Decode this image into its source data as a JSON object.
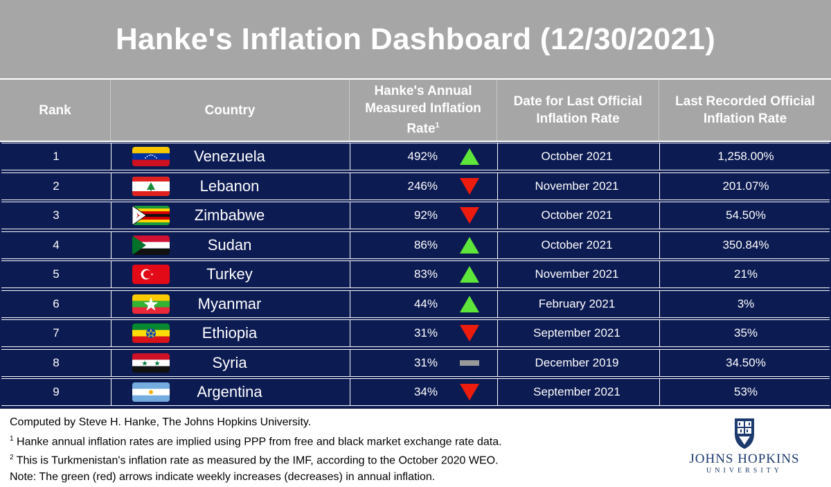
{
  "title": "Hanke's Inflation Dashboard (12/30/2021)",
  "columns": {
    "rank": "Rank",
    "country": "Country",
    "hanke_line1": "Hanke's Annual",
    "hanke_line2": "Measured Inflation",
    "hanke_line3": "Rate",
    "hanke_sup": "1",
    "date_line1": "Date for Last Official",
    "date_line2": "Inflation Rate",
    "last_line1": "Last Recorded Official",
    "last_line2": "Inflation Rate"
  },
  "chart_data": {
    "type": "table",
    "title": "Hanke's Inflation Dashboard (12/30/2021)",
    "headers": [
      "Rank",
      "Country",
      "Hanke's Annual Measured Inflation Rate",
      "Date for Last Official Inflation Rate",
      "Last Recorded Official Inflation Rate"
    ],
    "rows": [
      {
        "rank": "1",
        "country": "Venezuela",
        "flag": "venezuela-flag",
        "hanke_rate": "492%",
        "trend": "up",
        "date": "October 2021",
        "last_rate": "1,258.00%"
      },
      {
        "rank": "2",
        "country": "Lebanon",
        "flag": "lebanon-flag",
        "hanke_rate": "246%",
        "trend": "down",
        "date": "November 2021",
        "last_rate": "201.07%"
      },
      {
        "rank": "3",
        "country": "Zimbabwe",
        "flag": "zimbabwe-flag",
        "hanke_rate": "92%",
        "trend": "down",
        "date": "October 2021",
        "last_rate": "54.50%"
      },
      {
        "rank": "4",
        "country": "Sudan",
        "flag": "sudan-flag",
        "hanke_rate": "86%",
        "trend": "up",
        "date": "October 2021",
        "last_rate": "350.84%"
      },
      {
        "rank": "5",
        "country": "Turkey",
        "flag": "turkey-flag",
        "hanke_rate": "83%",
        "trend": "up",
        "date": "November 2021",
        "last_rate": "21%"
      },
      {
        "rank": "6",
        "country": "Myanmar",
        "flag": "myanmar-flag",
        "hanke_rate": "44%",
        "trend": "up",
        "date": "February 2021",
        "last_rate": "3%"
      },
      {
        "rank": "7",
        "country": "Ethiopia",
        "flag": "ethiopia-flag",
        "hanke_rate": "31%",
        "trend": "down",
        "date": "September 2021",
        "last_rate": "35%"
      },
      {
        "rank": "8",
        "country": "Syria",
        "flag": "syria-flag",
        "hanke_rate": "31%",
        "trend": "flat",
        "date": "December 2019",
        "last_rate": "34.50%"
      },
      {
        "rank": "9",
        "country": "Argentina",
        "flag": "argentina-flag",
        "hanke_rate": "34%",
        "trend": "down",
        "date": "September 2021",
        "last_rate": "53%"
      }
    ]
  },
  "colors": {
    "header_bg": "#a6a6a6",
    "body_bg": "#0c1b52",
    "up_arrow": "#5ee63a",
    "down_arrow": "#ee1c0e",
    "flat_marker": "#9a9a9a",
    "logo": "#1d3a6e"
  },
  "footer": {
    "line1": "Computed by Steve H. Hanke, The Johns Hopkins University.",
    "line2_sup": "1",
    "line2": " Hanke annual inflation rates are implied using PPP from free and black market exchange rate data.",
    "line3_sup": "2",
    "line3": " This is Turkmenistan's inflation rate as measured by the IMF, according to the October 2020 WEO.",
    "line4": "Note: The green (red) arrows indicate weekly increases (decreases) in annual inflation."
  },
  "logo": {
    "name": "JOHNS HOPKINS",
    "sub": "UNIVERSITY",
    "icon": "johns-hopkins-shield-icon"
  }
}
